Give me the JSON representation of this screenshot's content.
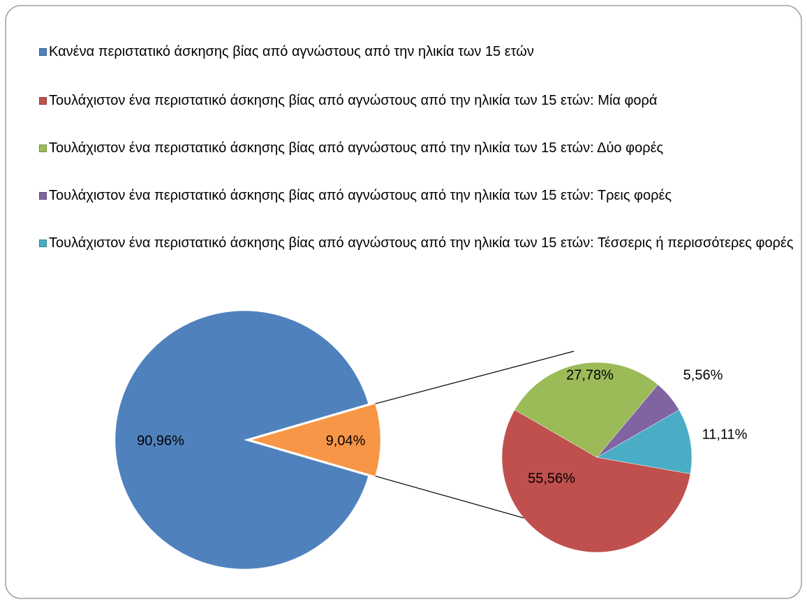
{
  "chart_data": {
    "type": "pie-of-pie",
    "legend": [
      {
        "name": "Κανένα περιστατικό άσκησης βίας από αγνώστους από την ηλικία των 15 ετών",
        "color": "#4f81bd"
      },
      {
        "name": "Τουλάχιστον ένα περιστατικό άσκησης βίας από αγνώστους από την ηλικία των 15 ετών: Μία φορά",
        "color": "#c0504d"
      },
      {
        "name": "Τουλάχιστον ένα περιστατικό άσκησης βίας από αγνώστους από την ηλικία των 15 ετών: Δύο φορές",
        "color": "#9bbb59"
      },
      {
        "name": "Τουλάχιστον ένα περιστατικό άσκησης βίας από αγνώστους από την ηλικία των 15 ετών: Τρεις φορές",
        "color": "#8064a2"
      },
      {
        "name": "Τουλάχιστον ένα περιστατικό άσκησης βίας από αγνώστους από την ηλικία των 15 ετών: Τέσσερις ή περισσότερες φορές",
        "color": "#4bacc6"
      }
    ],
    "pie": {
      "values": [
        90.96,
        9.04
      ],
      "value_labels": [
        "90,96%",
        "9,04%"
      ],
      "other_color": "#f79646"
    },
    "subpie": {
      "values": [
        55.56,
        27.78,
        5.56,
        11.11
      ],
      "value_labels": [
        "55,56%",
        "27,78%",
        "5,56%",
        "11,11%"
      ]
    }
  }
}
